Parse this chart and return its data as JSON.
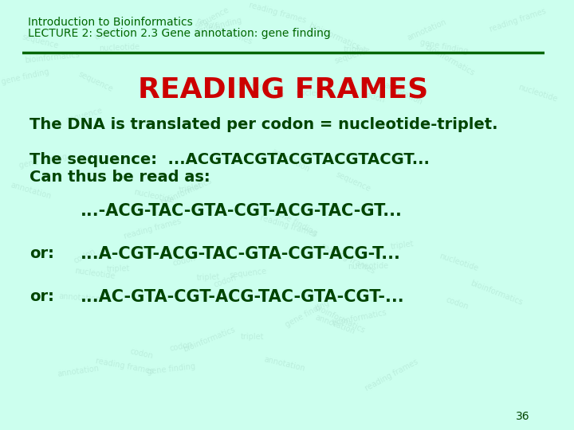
{
  "bg_color": "#ccffee",
  "header_bg": "#ccffee",
  "header_line_color": "#006600",
  "header_text1": "Introduction to Bioinformatics",
  "header_text2": "LECTURE 2: Section 2.3 Gene annotation: gene finding",
  "header_text_color": "#006600",
  "title": "READING FRAMES",
  "title_color": "#cc0000",
  "body_color": "#004400",
  "line1": "The DNA is translated per codon = nucleotide-triplet.",
  "line2a": "The sequence:  ...ACGTACGTACGTACGTACGT...",
  "line2b": "Can thus be read as:",
  "line3": "...-ACG-TAC-GTA-CGT-ACG-TAC-GT...",
  "line4_label": "or:",
  "line4": "...A-CGT-ACG-TAC-GTA-CGT-ACG-T...",
  "line5_label": "or:",
  "line5": "...AC-GTA-CGT-ACG-TAC-GTA-CGT-...",
  "page_num": "36",
  "watermark_color": "#aaddcc"
}
